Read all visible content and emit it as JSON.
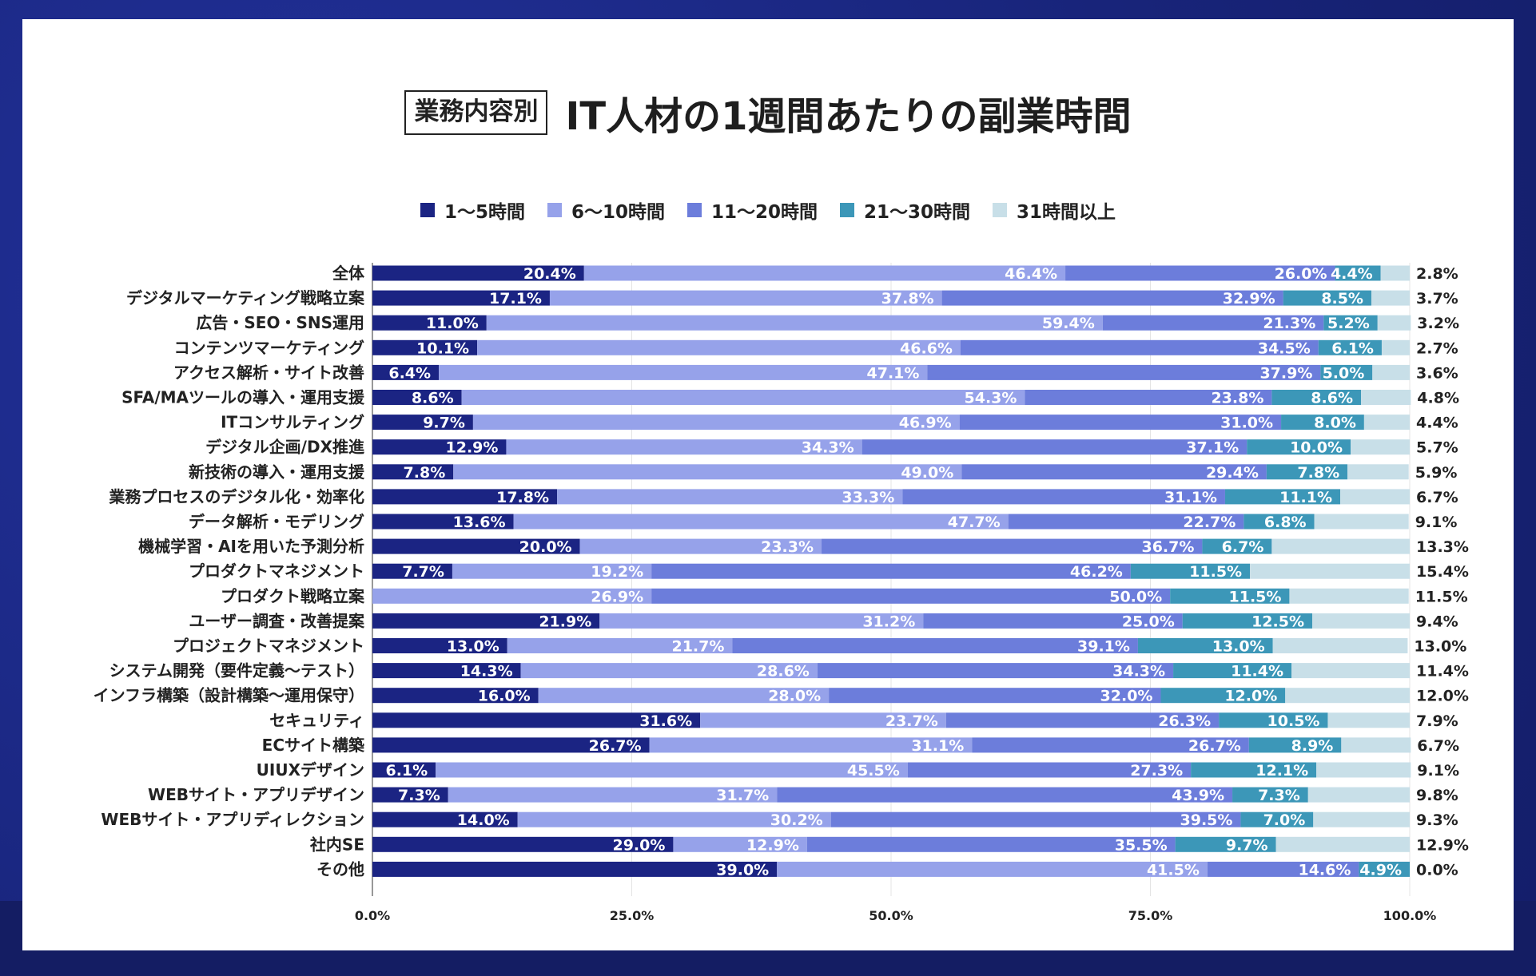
{
  "colors": {
    "series": [
      "#1b2483",
      "#96a2ea",
      "#6c7ddb",
      "#3c97b8",
      "#c8dfe8"
    ],
    "grid": "#e4e4e4",
    "axis": "#555555"
  },
  "chart_data": {
    "type": "bar",
    "orientation": "horizontal",
    "stacked": true,
    "title_badge": "業務内容別",
    "title": "IT人材の1週間あたりの副業時間",
    "xlim": [
      0,
      100
    ],
    "xticks": [
      "0.0%",
      "25.0%",
      "50.0%",
      "75.0%",
      "100.0%"
    ],
    "xtick_values": [
      0,
      25,
      50,
      75,
      100
    ],
    "series_names": [
      "1〜5時間",
      "6〜10時間",
      "11〜20時間",
      "21〜30時間",
      "31時間以上"
    ],
    "categories": [
      "全体",
      "デジタルマーケティング戦略立案",
      "広告・SEO・SNS運用",
      "コンテンツマーケティング",
      "アクセス解析・サイト改善",
      "SFA/MAツールの導入・運用支援",
      "ITコンサルティング",
      "デジタル企画/DX推進",
      "新技術の導入・運用支援",
      "業務プロセスのデジタル化・効率化",
      "データ解析・モデリング",
      "機械学習・AIを用いた予測分析",
      "プロダクトマネジメント",
      "プロダクト戦略立案",
      "ユーザー調査・改善提案",
      "プロジェクトマネジメント",
      "システム開発（要件定義〜テスト）",
      "インフラ構築（設計構築〜運用保守）",
      "セキュリティ",
      "ECサイト構築",
      "UIUXデザイン",
      "WEBサイト・アプリデザイン",
      "WEBサイト・アプリディレクション",
      "社内SE",
      "その他"
    ],
    "rows": [
      [
        20.4,
        46.4,
        26.0,
        4.4,
        2.8
      ],
      [
        17.1,
        37.8,
        32.9,
        8.5,
        3.7
      ],
      [
        11.0,
        59.4,
        21.3,
        5.2,
        3.2
      ],
      [
        10.1,
        46.6,
        34.5,
        6.1,
        2.7
      ],
      [
        6.4,
        47.1,
        37.9,
        5.0,
        3.6
      ],
      [
        8.6,
        54.3,
        23.8,
        8.6,
        4.8
      ],
      [
        9.7,
        46.9,
        31.0,
        8.0,
        4.4
      ],
      [
        12.9,
        34.3,
        37.1,
        10.0,
        5.7
      ],
      [
        7.8,
        49.0,
        29.4,
        7.8,
        5.9
      ],
      [
        17.8,
        33.3,
        31.1,
        11.1,
        6.7
      ],
      [
        13.6,
        47.7,
        22.7,
        6.8,
        9.1
      ],
      [
        20.0,
        23.3,
        36.7,
        6.7,
        13.3
      ],
      [
        7.7,
        19.2,
        46.2,
        11.5,
        15.4
      ],
      [
        0.0,
        26.9,
        50.0,
        11.5,
        11.5
      ],
      [
        21.9,
        31.2,
        25.0,
        12.5,
        9.4
      ],
      [
        13.0,
        21.7,
        39.1,
        13.0,
        13.0
      ],
      [
        14.3,
        28.6,
        34.3,
        11.4,
        11.4
      ],
      [
        16.0,
        28.0,
        32.0,
        12.0,
        12.0
      ],
      [
        31.6,
        23.7,
        26.3,
        10.5,
        7.9
      ],
      [
        26.7,
        31.1,
        26.7,
        8.9,
        6.7
      ],
      [
        6.1,
        45.5,
        27.3,
        12.1,
        9.1
      ],
      [
        7.3,
        31.7,
        43.9,
        7.3,
        9.8
      ],
      [
        14.0,
        30.2,
        39.5,
        7.0,
        9.3
      ],
      [
        29.0,
        12.9,
        35.5,
        9.7,
        12.9
      ],
      [
        39.0,
        41.5,
        14.6,
        4.9,
        0.0
      ]
    ]
  }
}
